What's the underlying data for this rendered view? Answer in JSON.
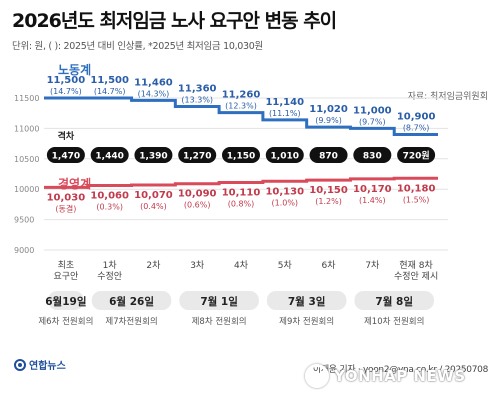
{
  "header": {
    "title": "2026년도 최저임금 노사 요구안 변동 추이",
    "subtitle": "단위: 원, ( ): 2025년 대비 인상률,  *2025년 최저임금 10,030원"
  },
  "source": "자료: 최저임금위원회",
  "chart_data": {
    "type": "line",
    "title": "2026년도 최저임금 노사 요구안 변동 추이",
    "categories": [
      "최초\n요구안",
      "1차\n수정안",
      "2차",
      "3차",
      "4차",
      "5차",
      "6차",
      "7차",
      "현재 8차\n수정안 제시"
    ],
    "ylim": [
      9000,
      11500
    ],
    "yticks": [
      11500,
      11000,
      10500,
      10000,
      9500,
      9000
    ],
    "grid": true,
    "series": [
      {
        "name": "노동계",
        "color": "#2f6fc0",
        "values": [
          11500,
          11500,
          11460,
          11360,
          11260,
          11140,
          11020,
          11000,
          10900
        ],
        "labels": [
          "11,500",
          "11,500",
          "11,460",
          "11,360",
          "11,260",
          "11,140",
          "11,020",
          "11,000",
          "10,900"
        ],
        "rates": [
          "(14.7%)",
          "(14.7%)",
          "(14.3%)",
          "(13.3%)",
          "(12.3%)",
          "(11.1%)",
          "(9.9%)",
          "(9.7%)",
          "(8.7%)"
        ]
      },
      {
        "name": "경영계",
        "color": "#d94a5a",
        "values": [
          10030,
          10060,
          10070,
          10090,
          10110,
          10130,
          10150,
          10170,
          10180
        ],
        "labels": [
          "10,030",
          "10,060",
          "10,070",
          "10,090",
          "10,110",
          "10,130",
          "10,150",
          "10,170",
          "10,180"
        ],
        "rates": [
          "(동결)",
          "(0.3%)",
          "(0.4%)",
          "(0.6%)",
          "(0.8%)",
          "(1.0%)",
          "(1.2%)",
          "(1.4%)",
          "(1.5%)"
        ]
      }
    ],
    "gap_label": "격차",
    "gaps": [
      "1,470",
      "1,440",
      "1,390",
      "1,270",
      "1,150",
      "1,010",
      "870",
      "830",
      "720원"
    ],
    "meetings": [
      {
        "date": "6월19일",
        "session": "제6차 전원회의",
        "span": [
          0,
          0
        ]
      },
      {
        "date": "6월 26일",
        "session": "제7차전원회의",
        "span": [
          1,
          2
        ]
      },
      {
        "date": "7월 1일",
        "session": "제8차 전원회의",
        "span": [
          3,
          4
        ]
      },
      {
        "date": "7월 3일",
        "session": "제9차 전원회의",
        "span": [
          5,
          6
        ]
      },
      {
        "date": "7월 8일",
        "session": "제10차 전원회의",
        "span": [
          7,
          8
        ]
      }
    ]
  },
  "footer": {
    "credit": "이재윤 기자 ·  yoon2@yna.co.kr / 20250708",
    "logo": "연합뉴스",
    "watermark": "YONHAP NEWS"
  }
}
